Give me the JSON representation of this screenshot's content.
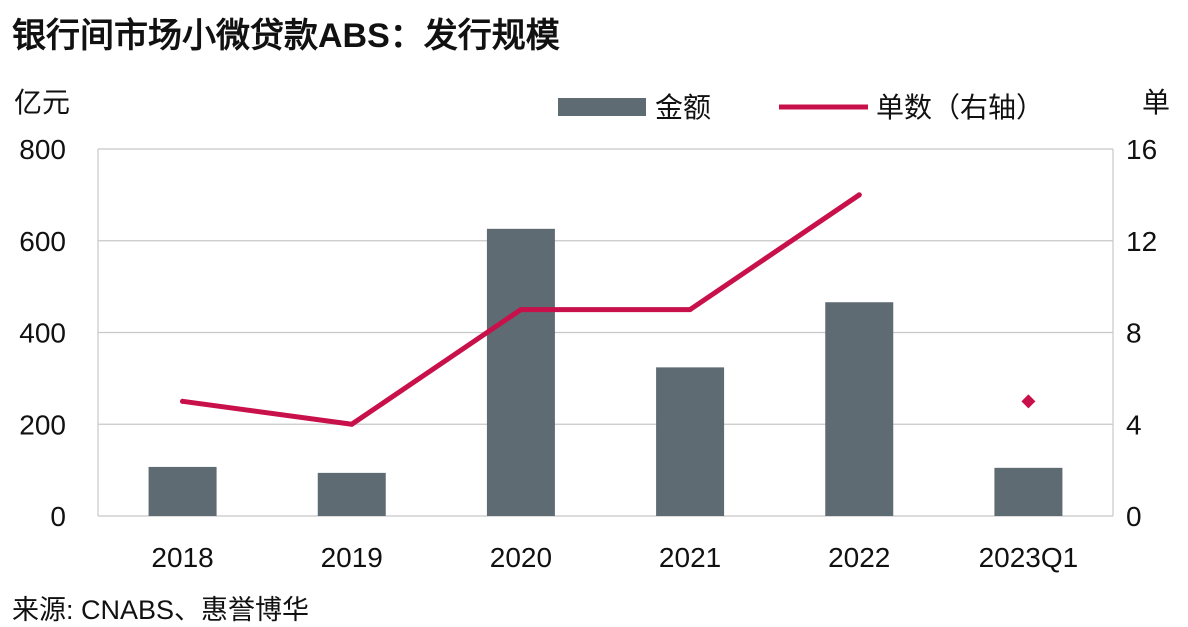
{
  "chart_data": {
    "type": "bar",
    "title": "银行间市场小微贷款ABS：发行规模",
    "categories": [
      "2018",
      "2019",
      "2020",
      "2021",
      "2022",
      "2023Q1"
    ],
    "series": [
      {
        "name": "金额",
        "type": "bar",
        "axis": "left",
        "color": "#5f6b73",
        "values": [
          107,
          94,
          626,
          324,
          466,
          105
        ]
      },
      {
        "name": "单数（右轴）",
        "type": "line",
        "axis": "right",
        "color": "#c8104a",
        "values": [
          5,
          4,
          9,
          9,
          14,
          null
        ]
      },
      {
        "name": "单数（右轴）",
        "type": "marker",
        "axis": "right",
        "color": "#c8104a",
        "values": [
          null,
          null,
          null,
          null,
          null,
          5
        ]
      }
    ],
    "y_left": {
      "label": "亿元",
      "lim": [
        0,
        800
      ],
      "ticks": [
        "0",
        "200",
        "400",
        "600",
        "800"
      ]
    },
    "y_right": {
      "label": "单",
      "lim": [
        0,
        16
      ],
      "ticks": [
        "0",
        "4",
        "8",
        "12",
        "16"
      ]
    },
    "grid": true,
    "legend_position": "top-right",
    "source": "来源: CNABS、惠誉博华"
  }
}
